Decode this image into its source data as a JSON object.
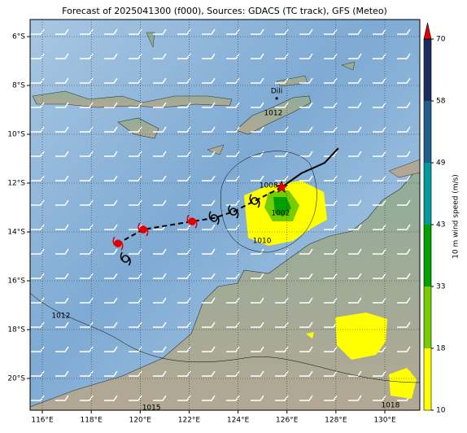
{
  "title": "Forecast of 2025041300 (f000), Sources: GDACS (TC track), GFS (Meteo)",
  "map": {
    "xlim": [
      115.5,
      131.43
    ],
    "ylim": [
      -21.3,
      -5.3
    ],
    "xticks": [
      {
        "value": 116,
        "label": "116°E"
      },
      {
        "value": 118,
        "label": "118°E"
      },
      {
        "value": 120,
        "label": "120°E"
      },
      {
        "value": 122,
        "label": "122°E"
      },
      {
        "value": 124,
        "label": "124°E"
      },
      {
        "value": 126,
        "label": "126°E"
      },
      {
        "value": 128,
        "label": "128°E"
      },
      {
        "value": 130,
        "label": "130°E"
      }
    ],
    "yticks": [
      {
        "value": -6,
        "label": "6°S"
      },
      {
        "value": -8,
        "label": "8°S"
      },
      {
        "value": -10,
        "label": "10°S"
      },
      {
        "value": -12,
        "label": "12°S"
      },
      {
        "value": -14,
        "label": "14°S"
      },
      {
        "value": -16,
        "label": "16°S"
      },
      {
        "value": -18,
        "label": "18°S"
      },
      {
        "value": -20,
        "label": "20°S"
      }
    ],
    "grid": true,
    "places": [
      {
        "name": "Dili",
        "lon": 125.58,
        "lat": -8.53
      }
    ],
    "isobar_labels": [
      {
        "label": "1012",
        "lon": 125.44,
        "lat": -9.13
      },
      {
        "label": "1008",
        "lon": 125.25,
        "lat": -12.1
      },
      {
        "label": "1002",
        "lon": 125.74,
        "lat": -13.23
      },
      {
        "label": "1010",
        "lon": 124.98,
        "lat": -14.37
      },
      {
        "label": "1012",
        "lon": 116.76,
        "lat": -17.43
      },
      {
        "label": "1015",
        "lon": 120.46,
        "lat": -21.2
      },
      {
        "label": "1018",
        "lon": 130.23,
        "lat": -21.1
      }
    ],
    "past_track": {
      "color": "#000000",
      "lon": [
        128.1,
        127.54,
        126.58,
        125.78
      ],
      "lat": [
        -10.57,
        -11.17,
        -11.6,
        -12.17
      ]
    },
    "forecast_track": {
      "color": "#000000",
      "lon": [
        125.78,
        124.68,
        123.81,
        123.02,
        122.12,
        120.12,
        119.09
      ],
      "lat": [
        -12.17,
        -12.73,
        -13.17,
        -13.43,
        -13.57,
        -13.9,
        -14.47
      ]
    },
    "current_position": {
      "lon": 125.78,
      "lat": -12.17,
      "color": "#e00000"
    },
    "symbols": [
      {
        "lon": 124.68,
        "lat": -12.73,
        "color": "#000000"
      },
      {
        "lon": 123.81,
        "lat": -13.17,
        "color": "#000000"
      },
      {
        "lon": 123.02,
        "lat": -13.43,
        "color": "#000000"
      },
      {
        "lon": 122.12,
        "lat": -13.57,
        "color": "#e00000"
      },
      {
        "lon": 120.12,
        "lat": -13.9,
        "color": "#e00000"
      },
      {
        "lon": 119.09,
        "lat": -14.47,
        "color": "#e00000"
      },
      {
        "lon": 119.4,
        "lat": -15.1,
        "color": "#000000"
      }
    ]
  },
  "colorbar": {
    "label": "10 m wind speed (m/s)",
    "ticks": [
      10,
      18,
      33,
      43,
      49,
      58,
      70
    ],
    "colors": [
      "#ffff00",
      "#77cc00",
      "#00a000",
      "#009a9a",
      "#1f5e8f",
      "#1b2d5e"
    ],
    "extend_color": "#e00000"
  }
}
